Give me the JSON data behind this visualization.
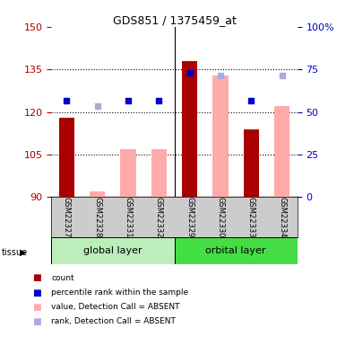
{
  "title": "GDS851 / 1375459_at",
  "samples": [
    "GSM22327",
    "GSM22328",
    "GSM22331",
    "GSM22332",
    "GSM22329",
    "GSM22330",
    "GSM22333",
    "GSM22334"
  ],
  "count_values": [
    118,
    null,
    null,
    null,
    138,
    null,
    114,
    null
  ],
  "count_absent_values": [
    null,
    92,
    107,
    107,
    null,
    133,
    null,
    122
  ],
  "rank_values": [
    124,
    null,
    124,
    124,
    134,
    null,
    124,
    null
  ],
  "rank_absent_values": [
    null,
    122,
    null,
    null,
    null,
    133,
    null,
    133
  ],
  "ylim_left": [
    90,
    150
  ],
  "ylim_right": [
    0,
    100
  ],
  "yticks_left": [
    90,
    105,
    120,
    135,
    150
  ],
  "yticks_right": [
    0,
    25,
    50,
    75,
    100
  ],
  "grid_lines": [
    105,
    120,
    135
  ],
  "colors": {
    "count": "#aa0000",
    "count_absent": "#ffaaaa",
    "rank": "#0000cc",
    "rank_absent": "#aaaadd",
    "group_global": "#bbeebb",
    "group_orbital": "#44dd44",
    "sample_bg": "#cccccc",
    "divider": "#000000"
  },
  "bar_width": 0.5,
  "marker_size": 5,
  "legend": [
    {
      "color": "#aa0000",
      "label": "count"
    },
    {
      "color": "#0000cc",
      "label": "percentile rank within the sample"
    },
    {
      "color": "#ffaaaa",
      "label": "value, Detection Call = ABSENT"
    },
    {
      "color": "#aaaadd",
      "label": "rank, Detection Call = ABSENT"
    }
  ]
}
